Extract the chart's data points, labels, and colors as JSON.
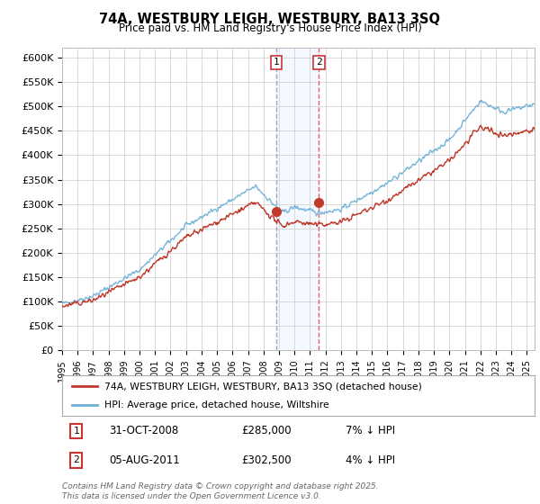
{
  "title": "74A, WESTBURY LEIGH, WESTBURY, BA13 3SQ",
  "subtitle": "Price paid vs. HM Land Registry's House Price Index (HPI)",
  "ylim": [
    0,
    620000
  ],
  "yticks": [
    0,
    50000,
    100000,
    150000,
    200000,
    250000,
    300000,
    350000,
    400000,
    450000,
    500000,
    550000,
    600000
  ],
  "ytick_labels": [
    "£0",
    "£50K",
    "£100K",
    "£150K",
    "£200K",
    "£250K",
    "£300K",
    "£350K",
    "£400K",
    "£450K",
    "£500K",
    "£550K",
    "£600K"
  ],
  "hpi_color": "#6baed6",
  "price_color": "#c0392b",
  "sale1_date": 2008.83,
  "sale1_price": 285000,
  "sale2_date": 2011.58,
  "sale2_price": 302500,
  "shade_color": "#ddeeff",
  "vline1_color": "#aaaacc",
  "vline2_color": "#e06060",
  "legend_line1": "74A, WESTBURY LEIGH, WESTBURY, BA13 3SQ (detached house)",
  "legend_line2": "HPI: Average price, detached house, Wiltshire",
  "footer": "Contains HM Land Registry data © Crown copyright and database right 2025.\nThis data is licensed under the Open Government Licence v3.0.",
  "bg_color": "#ffffff",
  "grid_color": "#cccccc",
  "xlim_start": 1995,
  "xlim_end": 2025.5
}
